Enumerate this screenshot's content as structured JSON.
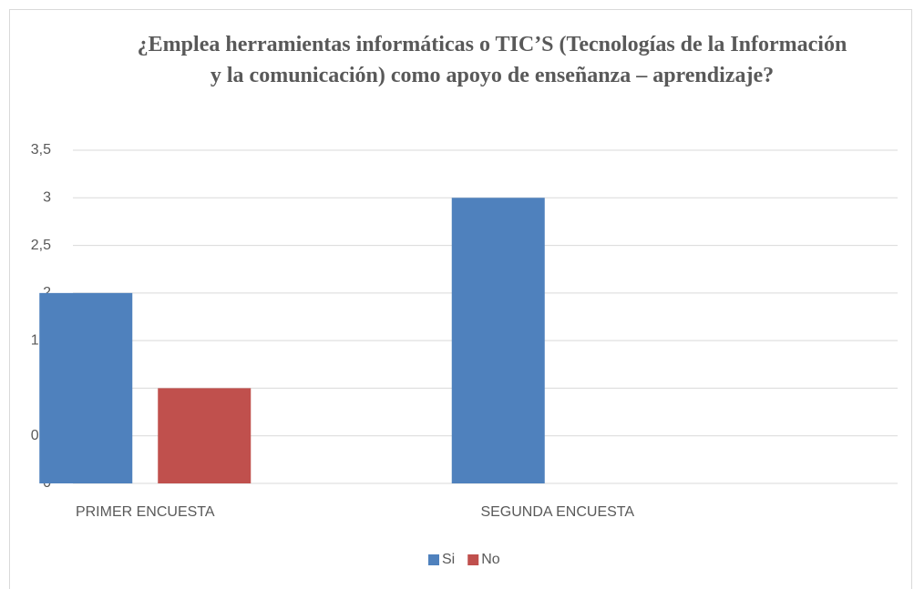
{
  "chart_data": {
    "type": "bar",
    "title": "¿Emplea herramientas informáticas o TIC’S (Tecnologías de la Información y la comunicación) como apoyo de enseñanza – aprendizaje?",
    "categories": [
      "PRIMER ENCUESTA",
      "SEGUNDA ENCUESTA"
    ],
    "series": [
      {
        "name": "Si",
        "color": "#4f81bd",
        "values": [
          2,
          3
        ]
      },
      {
        "name": "No",
        "color": "#c0504d",
        "values": [
          1,
          0
        ]
      }
    ],
    "ylim": [
      0,
      3.5
    ],
    "yticks": [
      0,
      {
        "value": 0.5,
        "label": "0,5"
      },
      1,
      {
        "value": 1.5,
        "label": "1,5"
      },
      2,
      {
        "value": 2.5,
        "label": "2,5"
      },
      3,
      {
        "value": 3.5,
        "label": "3,5"
      }
    ],
    "grid": true,
    "legend": "bottom"
  }
}
